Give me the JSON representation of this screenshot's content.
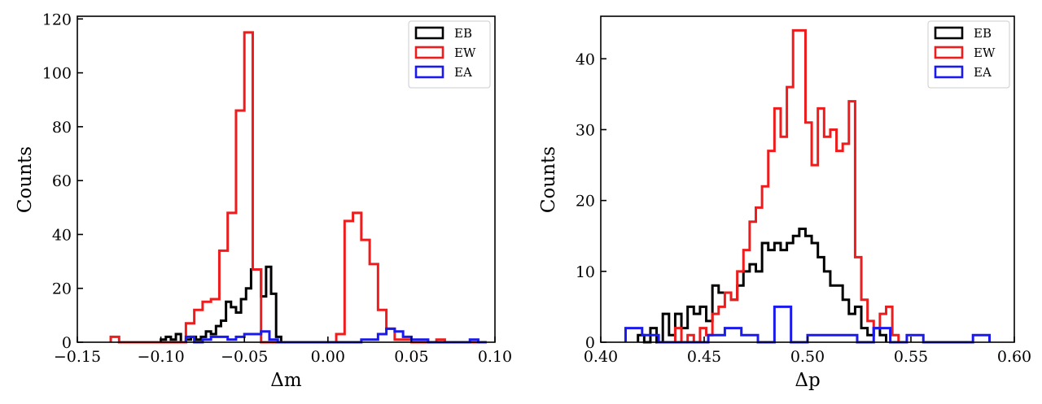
{
  "chart_data": [
    {
      "type": "histogram-step",
      "title": "",
      "xlabel": "Δm",
      "ylabel": "Counts",
      "xlim": [
        -0.15,
        0.1
      ],
      "ylim": [
        0,
        121
      ],
      "xticks": [
        -0.15,
        -0.1,
        -0.05,
        0.0,
        0.05,
        0.1
      ],
      "xtick_labels": [
        "−0.15",
        "−0.10",
        "−0.05",
        "0.00",
        "0.05",
        "0.10"
      ],
      "yticks": [
        0,
        20,
        40,
        60,
        80,
        100,
        120
      ],
      "ytick_labels": [
        "0",
        "20",
        "40",
        "60",
        "80",
        "100",
        "120"
      ],
      "legend_position": "top-right",
      "series": [
        {
          "name": "EB",
          "color": "#000000",
          "edges": [
            -0.1,
            -0.097,
            -0.094,
            -0.091,
            -0.088,
            -0.085,
            -0.082,
            -0.079,
            -0.076,
            -0.073,
            -0.07,
            -0.067,
            -0.064,
            -0.061,
            -0.058,
            -0.055,
            -0.052,
            -0.049,
            -0.046,
            -0.043,
            -0.04,
            -0.037,
            -0.034,
            -0.031,
            -0.028
          ],
          "counts": [
            1,
            2,
            1,
            3,
            0,
            1,
            2,
            1,
            2,
            4,
            3,
            6,
            8,
            15,
            13,
            11,
            16,
            20,
            27,
            27,
            17,
            28,
            18,
            2
          ]
        },
        {
          "name": "EW",
          "color": "#ee1c1c",
          "edges": [
            -0.13,
            -0.125,
            -0.12,
            -0.115,
            -0.11,
            -0.105,
            -0.1,
            -0.095,
            -0.09,
            -0.085,
            -0.08,
            -0.075,
            -0.07,
            -0.065,
            -0.06,
            -0.055,
            -0.05,
            -0.045,
            -0.04,
            -0.035,
            -0.03,
            -0.025,
            -0.02,
            -0.015,
            -0.01,
            -0.005,
            0.0,
            0.005,
            0.01,
            0.015,
            0.02,
            0.025,
            0.03,
            0.035,
            0.04,
            0.045,
            0.05,
            0.055,
            0.06,
            0.065,
            0.07,
            0.075,
            0.08,
            0.085,
            0.09,
            0.095
          ],
          "counts": [
            2,
            0,
            0,
            0,
            0,
            0,
            0,
            0,
            0,
            7,
            12,
            15,
            16,
            34,
            48,
            86,
            115,
            27,
            0,
            0,
            0,
            0,
            0,
            0,
            0,
            0,
            0,
            3,
            45,
            48,
            38,
            29,
            12,
            5,
            1,
            1,
            0,
            0,
            0,
            1,
            0,
            0,
            0,
            0,
            0
          ]
        },
        {
          "name": "EA",
          "color": "#1a1aee",
          "edges": [
            -0.085,
            -0.08,
            -0.075,
            -0.07,
            -0.065,
            -0.06,
            -0.055,
            -0.05,
            -0.045,
            -0.04,
            -0.035,
            -0.03,
            -0.025,
            -0.02,
            -0.015,
            -0.01,
            -0.005,
            0.0,
            0.005,
            0.01,
            0.015,
            0.02,
            0.025,
            0.03,
            0.035,
            0.04,
            0.045,
            0.05,
            0.055,
            0.06,
            0.065,
            0.07,
            0.075,
            0.08,
            0.085,
            0.09,
            0.095
          ],
          "counts": [
            2,
            0,
            1,
            2,
            2,
            1,
            2,
            3,
            3,
            4,
            1,
            0,
            0,
            0,
            0,
            0,
            0,
            0,
            0,
            0,
            0,
            1,
            1,
            3,
            5,
            4,
            2,
            1,
            1,
            0,
            0,
            0,
            0,
            0,
            1,
            0
          ]
        }
      ]
    },
    {
      "type": "histogram-step",
      "title": "",
      "xlabel": "Δp",
      "ylabel": "Counts",
      "xlim": [
        0.4,
        0.6
      ],
      "ylim": [
        0,
        46
      ],
      "xticks": [
        0.4,
        0.45,
        0.5,
        0.55,
        0.6
      ],
      "xtick_labels": [
        "0.40",
        "0.45",
        "0.50",
        "0.55",
        "0.60"
      ],
      "yticks": [
        0,
        10,
        20,
        30,
        40
      ],
      "ytick_labels": [
        "0",
        "10",
        "20",
        "30",
        "40"
      ],
      "legend_position": "top-right",
      "series": [
        {
          "name": "EB",
          "color": "#000000",
          "edges": [
            0.418,
            0.421,
            0.424,
            0.427,
            0.43,
            0.433,
            0.436,
            0.439,
            0.442,
            0.445,
            0.448,
            0.451,
            0.454,
            0.457,
            0.46,
            0.463,
            0.466,
            0.469,
            0.472,
            0.475,
            0.478,
            0.481,
            0.484,
            0.487,
            0.49,
            0.493,
            0.496,
            0.499,
            0.502,
            0.505,
            0.508,
            0.511,
            0.514,
            0.517,
            0.52,
            0.523,
            0.526,
            0.529,
            0.532,
            0.535,
            0.538
          ],
          "counts": [
            1,
            0,
            2,
            0,
            4,
            1,
            4,
            2,
            5,
            4,
            5,
            3,
            8,
            7,
            7,
            6,
            8,
            10,
            11,
            10,
            14,
            13,
            14,
            13,
            14,
            15,
            16,
            15,
            14,
            12,
            10,
            8,
            8,
            6,
            4,
            5,
            2,
            1,
            2,
            1
          ]
        },
        {
          "name": "EW",
          "color": "#ee1c1c",
          "edges": [
            0.436,
            0.439,
            0.442,
            0.445,
            0.448,
            0.451,
            0.454,
            0.457,
            0.46,
            0.463,
            0.466,
            0.469,
            0.472,
            0.475,
            0.478,
            0.481,
            0.484,
            0.487,
            0.49,
            0.493,
            0.496,
            0.499,
            0.502,
            0.505,
            0.508,
            0.511,
            0.514,
            0.517,
            0.52,
            0.523,
            0.526,
            0.529,
            0.532,
            0.535,
            0.538,
            0.541,
            0.544
          ],
          "counts": [
            2,
            0,
            1,
            0,
            2,
            1,
            4,
            5,
            7,
            6,
            10,
            13,
            17,
            19,
            22,
            27,
            33,
            29,
            36,
            44,
            44,
            31,
            25,
            33,
            29,
            30,
            27,
            28,
            34,
            12,
            6,
            3,
            2,
            4,
            5,
            1
          ]
        },
        {
          "name": "EA",
          "color": "#1a1aee",
          "edges": [
            0.412,
            0.42,
            0.428,
            0.436,
            0.444,
            0.452,
            0.46,
            0.468,
            0.476,
            0.484,
            0.492,
            0.5,
            0.508,
            0.516,
            0.524,
            0.532,
            0.54,
            0.548,
            0.556,
            0.564,
            0.572,
            0.58,
            0.588
          ],
          "counts": [
            2,
            1,
            0,
            0,
            0,
            1,
            2,
            1,
            0,
            5,
            0,
            1,
            1,
            1,
            0,
            2,
            0,
            1,
            0,
            0,
            0,
            1
          ]
        }
      ]
    }
  ]
}
